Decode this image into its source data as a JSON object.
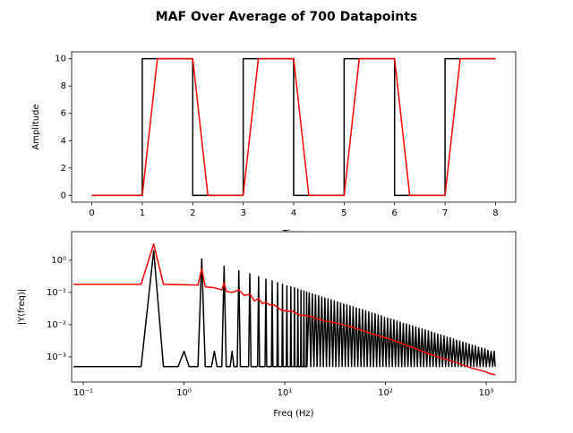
{
  "title": "MAF Over Average of 700 Datapoints",
  "chart_data": [
    {
      "type": "line",
      "xlabel": "Time",
      "ylabel": "Amplitude",
      "xlim": [
        -0.4,
        8.4
      ],
      "ylim": [
        -0.5,
        10.5
      ],
      "xticks": [
        0,
        1,
        2,
        3,
        4,
        5,
        6,
        7,
        8
      ],
      "yticks": [
        0,
        2,
        4,
        6,
        8,
        10
      ],
      "series": [
        {
          "color": "#000000",
          "x": [
            0,
            1,
            1,
            2,
            2,
            3,
            3,
            4,
            4,
            5,
            5,
            6,
            6,
            7,
            7,
            8
          ],
          "values": [
            0,
            0,
            10,
            10,
            0,
            0,
            10,
            10,
            0,
            0,
            10,
            10,
            0,
            0,
            10,
            10
          ]
        },
        {
          "color": "#ff0000",
          "x": [
            0,
            1,
            1.3,
            2,
            2.3,
            3,
            3.3,
            4,
            4.3,
            5,
            5.3,
            6,
            6.3,
            7,
            7.3,
            8
          ],
          "values": [
            0,
            0,
            10,
            10,
            0,
            0,
            10,
            10,
            0,
            0,
            10,
            10,
            0,
            0,
            10,
            10
          ]
        }
      ]
    },
    {
      "type": "line",
      "xlabel": "Freq (Hz)",
      "ylabel": "|Y(freq)|",
      "xscale": "log",
      "yscale": "log",
      "xlim": [
        0.0766,
        1963
      ],
      "ylim": [
        0.000166,
        7.7
      ],
      "xticks": [
        {
          "value": 0.1,
          "label": "10⁻¹"
        },
        {
          "value": 1,
          "label": "10⁰"
        },
        {
          "value": 10,
          "label": "10¹"
        },
        {
          "value": 100,
          "label": "10²"
        },
        {
          "value": 1000,
          "label": "10³"
        }
      ],
      "yticks": [
        {
          "value": 0.001,
          "label": "10⁻³"
        },
        {
          "value": 0.01,
          "label": "10⁻²"
        },
        {
          "value": 0.1,
          "label": "10⁻¹"
        },
        {
          "value": 1,
          "label": "10⁰"
        }
      ],
      "series": [
        {
          "color": "#000000",
          "x": [
            0.08,
            0.375,
            0.5,
            0.625,
            0.875,
            1.0,
            1.125,
            1.375,
            1.5,
            1.625,
            1.875,
            2.0,
            2.125,
            2.375,
            2.5,
            2.625,
            2.875,
            3.0,
            3.125,
            3.375,
            3.5,
            3.625,
            4.375,
            4.5,
            4.625,
            5.375,
            5.5,
            5.625,
            6.375,
            6.5,
            6.625,
            7.375,
            7.5,
            7.625,
            8.375,
            8.5,
            8.625,
            9.375,
            9.5,
            9.625,
            10.375,
            10.5,
            10.625,
            11.375,
            11.5,
            11.625,
            12.375,
            12.5,
            12.625,
            13.375,
            13.5,
            13.625,
            14.375,
            14.5,
            14.625,
            15.375,
            15.5,
            15.625,
            16.375,
            16.5,
            16.625,
            17.5,
            18.14,
            18.8,
            19.49,
            20.2,
            20.94,
            21.7,
            22.49,
            23.31,
            24.16,
            25.04,
            25.95,
            26.9,
            27.88,
            28.9,
            29.96,
            31.05,
            32.18,
            33.36,
            34.58,
            35.84,
            37.15,
            38.5,
            39.9,
            41.36,
            42.87,
            44.43,
            46.05,
            47.73,
            49.47,
            51.28,
            53.15,
            55.09,
            57.1,
            59.18,
            61.34,
            63.58,
            65.9,
            68.3,
            70.79,
            73.38,
            76.06,
            78.83,
            81.71,
            84.69,
            87.78,
            90.98,
            94.3,
            97.74,
            101.3,
            105,
            108.8,
            112.8,
            116.9,
            121.2,
            125.6,
            130.2,
            135,
            139.9,
            145,
            150.3,
            155.8,
            161.4,
            167.3,
            173.4,
            179.7,
            186.3,
            193.1,
            200.1,
            207.4,
            215,
            222.8,
            231,
            239.4,
            248.1,
            257.2,
            266.6,
            276.3,
            286.4,
            296.9,
            307.7,
            318.9,
            330.5,
            342.6,
            355.1,
            368.1,
            381.4,
            395.3,
            409.8,
            424.8,
            440.2,
            456.3,
            472.9,
            490.2,
            508.1,
            526.6,
            545.8,
            565.7,
            586.4,
            607.8,
            629.9,
            652.9,
            676.7,
            701.4,
            727,
            753.5,
            781,
            809.5,
            839.1,
            869.7,
            901.4,
            934.3,
            968.4,
            1003,
            1040,
            1078,
            1118,
            1159,
            1201,
            1228
          ],
          "values": [
            0.0005,
            0.0005,
            2.0,
            0.0005,
            0.0005,
            0.0015,
            0.0005,
            0.0005,
            1.1,
            0.0005,
            0.0005,
            0.0015,
            0.0005,
            0.0005,
            0.65,
            0.0005,
            0.0005,
            0.0015,
            0.0005,
            0.0005,
            0.47,
            0.0005,
            0.0005,
            0.38,
            0.0005,
            0.0005,
            0.31,
            0.0005,
            0.0005,
            0.26,
            0.0005,
            0.0005,
            0.23,
            0.0005,
            0.0005,
            0.2,
            0.0005,
            0.0005,
            0.18,
            0.0005,
            0.0005,
            0.16,
            0.0005,
            0.0005,
            0.15,
            0.0005,
            0.0005,
            0.14,
            0.0005,
            0.0005,
            0.126,
            0.0005,
            0.0005,
            0.117,
            0.0005,
            0.0005,
            0.11,
            0.0005,
            0.0005,
            0.103,
            0.0005,
            0.097,
            0.0005,
            0.09,
            0.0005,
            0.084,
            0.0005,
            0.078,
            0.0005,
            0.073,
            0.0005,
            0.068,
            0.0005,
            0.063,
            0.0005,
            0.059,
            0.0005,
            0.055,
            0.0005,
            0.051,
            0.0005,
            0.047,
            0.0005,
            0.044,
            0.0005,
            0.041,
            0.0005,
            0.038,
            0.0005,
            0.036,
            0.0005,
            0.033,
            0.0005,
            0.031,
            0.0005,
            0.029,
            0.0005,
            0.027,
            0.0005,
            0.025,
            0.0005,
            0.023,
            0.0005,
            0.022,
            0.0005,
            0.02,
            0.0005,
            0.019,
            0.0005,
            0.017,
            0.0005,
            0.016,
            0.0005,
            0.015,
            0.0005,
            0.014,
            0.0005,
            0.013,
            0.0005,
            0.012,
            0.0005,
            0.011,
            0.0005,
            0.0105,
            0.0005,
            0.0098,
            0.0005,
            0.0091,
            0.0005,
            0.0085,
            0.0005,
            0.0079,
            0.0005,
            0.0074,
            0.0005,
            0.0069,
            0.0005,
            0.0064,
            0.0005,
            0.0059,
            0.0005,
            0.0055,
            0.0005,
            0.0051,
            0.0005,
            0.0048,
            0.0005,
            0.0045,
            0.0005,
            0.0041,
            0.0005,
            0.0039,
            0.0005,
            0.0036,
            0.0005,
            0.0033,
            0.0005,
            0.0031,
            0.0005,
            0.0029,
            0.0005,
            0.0027,
            0.0005,
            0.0025,
            0.0005,
            0.0023,
            0.0005,
            0.0022,
            0.0005,
            0.002,
            0.0005,
            0.0019,
            0.0005,
            0.0018,
            0.0005,
            0.0016,
            0.0005,
            0.0015,
            0.0005,
            0.0015,
            0.0005
          ]
        },
        {
          "color": "#ff0000",
          "x": [
            0.08,
            0.375,
            0.5,
            0.625,
            1.375,
            1.5,
            1.625,
            2,
            2.375,
            2.5,
            2.625,
            3,
            3.5,
            4,
            4.5,
            5,
            5.5,
            6,
            6.5,
            7,
            8,
            9,
            10,
            12,
            14,
            17,
            20,
            25,
            30,
            40,
            50,
            65,
            80,
            100,
            130,
            160,
            200,
            260,
            330,
            420,
            500,
            600,
            700,
            850,
            1000,
            1100,
            1228
          ],
          "values": [
            0.18,
            0.18,
            3.2,
            0.18,
            0.17,
            0.55,
            0.15,
            0.14,
            0.12,
            0.2,
            0.11,
            0.1,
            0.12,
            0.08,
            0.09,
            0.055,
            0.065,
            0.045,
            0.05,
            0.042,
            0.04,
            0.03,
            0.027,
            0.026,
            0.02,
            0.019,
            0.016,
            0.013,
            0.012,
            0.0095,
            0.0078,
            0.006,
            0.0048,
            0.0039,
            0.003,
            0.0023,
            0.0018,
            0.0013,
            0.001,
            0.0008,
            0.00068,
            0.00055,
            0.00046,
            0.00039,
            0.00034,
            0.0003,
            0.00028
          ]
        }
      ]
    }
  ]
}
